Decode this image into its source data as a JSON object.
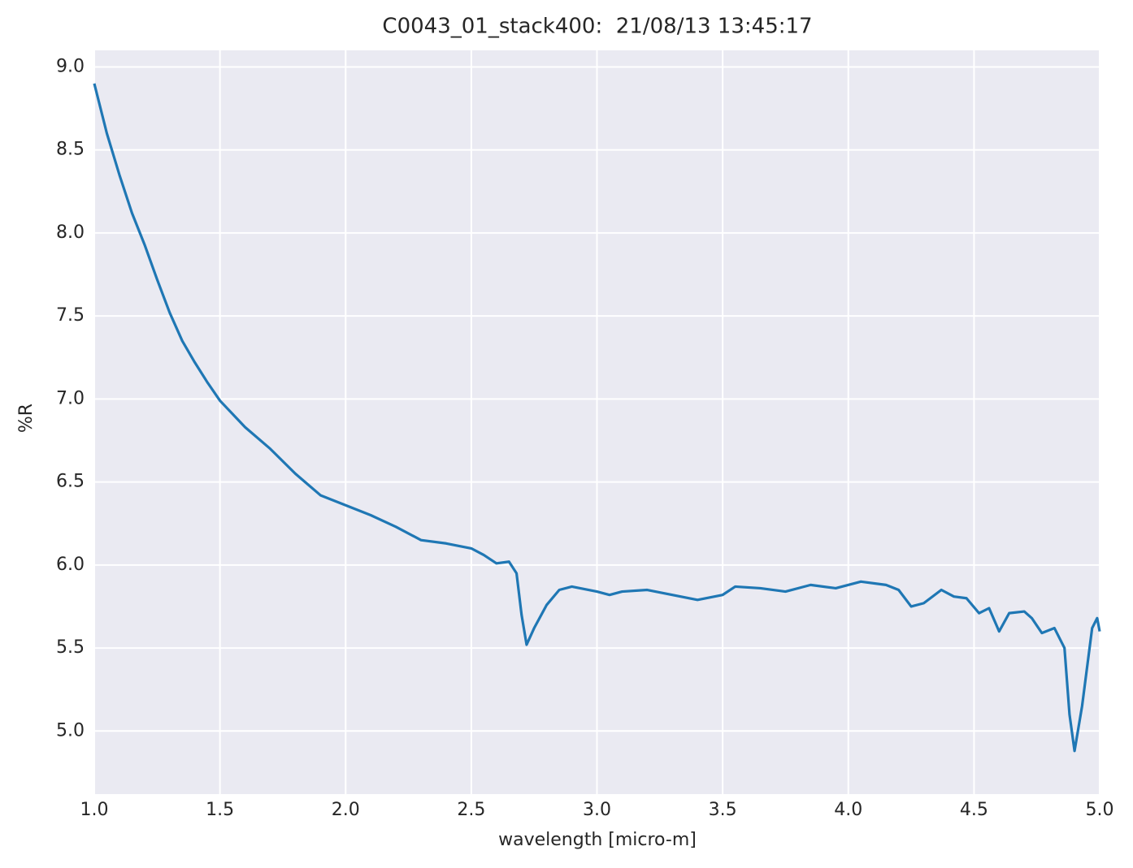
{
  "chart_data": {
    "type": "line",
    "title": "C0043_01_stack400:  21/08/13 13:45:17",
    "x_label": "wavelength [micro-m]",
    "y_label": "%R",
    "x": [
      1.0,
      1.05,
      1.1,
      1.15,
      1.2,
      1.25,
      1.3,
      1.35,
      1.4,
      1.45,
      1.5,
      1.6,
      1.7,
      1.8,
      1.9,
      2.0,
      2.1,
      2.2,
      2.3,
      2.4,
      2.5,
      2.55,
      2.6,
      2.65,
      2.68,
      2.7,
      2.72,
      2.75,
      2.8,
      2.85,
      2.9,
      3.0,
      3.05,
      3.1,
      3.2,
      3.3,
      3.4,
      3.5,
      3.55,
      3.65,
      3.75,
      3.85,
      3.95,
      4.05,
      4.15,
      4.2,
      4.25,
      4.3,
      4.37,
      4.42,
      4.47,
      4.52,
      4.56,
      4.6,
      4.64,
      4.7,
      4.73,
      4.77,
      4.82,
      4.86,
      4.88,
      4.9,
      4.93,
      4.97,
      4.99,
      5.0
    ],
    "series": [
      {
        "name": "%R",
        "color": "#1f77b4",
        "values": [
          8.9,
          8.6,
          8.35,
          8.12,
          7.93,
          7.72,
          7.52,
          7.35,
          7.22,
          7.1,
          6.99,
          6.83,
          6.7,
          6.55,
          6.42,
          6.36,
          6.3,
          6.23,
          6.15,
          6.13,
          6.1,
          6.06,
          6.01,
          6.02,
          5.95,
          5.7,
          5.52,
          5.62,
          5.76,
          5.85,
          5.87,
          5.84,
          5.82,
          5.84,
          5.85,
          5.82,
          5.79,
          5.82,
          5.87,
          5.86,
          5.84,
          5.88,
          5.86,
          5.9,
          5.88,
          5.85,
          5.75,
          5.77,
          5.85,
          5.81,
          5.8,
          5.71,
          5.74,
          5.6,
          5.71,
          5.72,
          5.68,
          5.59,
          5.62,
          5.5,
          5.1,
          4.88,
          5.15,
          5.62,
          5.68,
          5.6
        ]
      }
    ],
    "xlim": [
      1.0,
      5.0
    ],
    "ylim": [
      4.62,
      9.1
    ],
    "xticks": [
      {
        "value": 1,
        "label": "1.0"
      },
      1.5,
      {
        "value": 2,
        "label": "2.0"
      },
      2.5,
      {
        "value": 3,
        "label": "3.0"
      },
      3.5,
      {
        "value": 4,
        "label": "4.0"
      },
      4.5,
      {
        "value": 5,
        "label": "5.0"
      }
    ],
    "yticks": [
      {
        "value": 5,
        "label": "5.0"
      },
      5.5,
      {
        "value": 6,
        "label": "6.0"
      },
      6.5,
      {
        "value": 7,
        "label": "7.0"
      },
      7.5,
      {
        "value": 8,
        "label": "8.0"
      },
      8.5,
      {
        "value": 9,
        "label": "9.0"
      }
    ],
    "grid": true,
    "background": "#eaeaf2"
  }
}
